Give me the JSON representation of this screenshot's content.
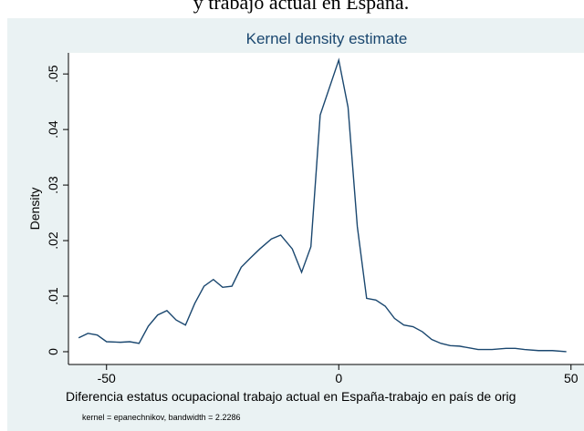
{
  "heading": "y trabajo actual en España.",
  "chart_data": {
    "type": "line",
    "title": "Kernel density estimate",
    "y_label": "Density",
    "x_label": "Diferencia estatus ocupacional trabajo actual en España-trabajo en país de orig",
    "note": "kernel = epanechnikov, bandwidth = 2.2286",
    "x": [
      -56,
      -54,
      -52,
      -50,
      -47,
      -45,
      -43,
      -41,
      -39,
      -37,
      -35,
      -33,
      -31,
      -29,
      -27,
      -25,
      -23,
      -21,
      -19,
      -17,
      -14.5,
      -12.5,
      -10,
      -8,
      -6,
      -4,
      0,
      2,
      4,
      6,
      8,
      10,
      12,
      14,
      16,
      18,
      20,
      22,
      24,
      26,
      28,
      30,
      33,
      36,
      38,
      40,
      43,
      46,
      49
    ],
    "series": [
      {
        "name": "Density",
        "color": "#1a476f",
        "values": [
          0.0025,
          0.0033,
          0.003,
          0.0018,
          0.0017,
          0.0018,
          0.0015,
          0.0046,
          0.0066,
          0.0074,
          0.0057,
          0.0048,
          0.0087,
          0.0118,
          0.013,
          0.0116,
          0.0118,
          0.0152,
          0.0169,
          0.0185,
          0.0203,
          0.021,
          0.0185,
          0.0143,
          0.0189,
          0.0426,
          0.0525,
          0.044,
          0.0225,
          0.0096,
          0.0093,
          0.0082,
          0.006,
          0.0048,
          0.0045,
          0.0036,
          0.0022,
          0.0015,
          0.0011,
          0.001,
          0.0007,
          0.0004,
          0.0004,
          0.0006,
          0.0006,
          0.0004,
          0.0002,
          0.0002,
          0
        ]
      }
    ],
    "xlim": [
      -58.2,
      52.8
    ],
    "ylim": [
      -0.0023,
      0.0538
    ],
    "xticks": [
      -50,
      0,
      50
    ],
    "yticks": [
      0,
      {
        "value": 0.01,
        "label": ".01"
      },
      {
        "value": 0.02,
        "label": ".02"
      },
      {
        "value": 0.03,
        "label": ".03"
      },
      {
        "value": 0.04,
        "label": ".04"
      },
      {
        "value": 0.05,
        "label": ".05"
      }
    ],
    "grid": false
  }
}
